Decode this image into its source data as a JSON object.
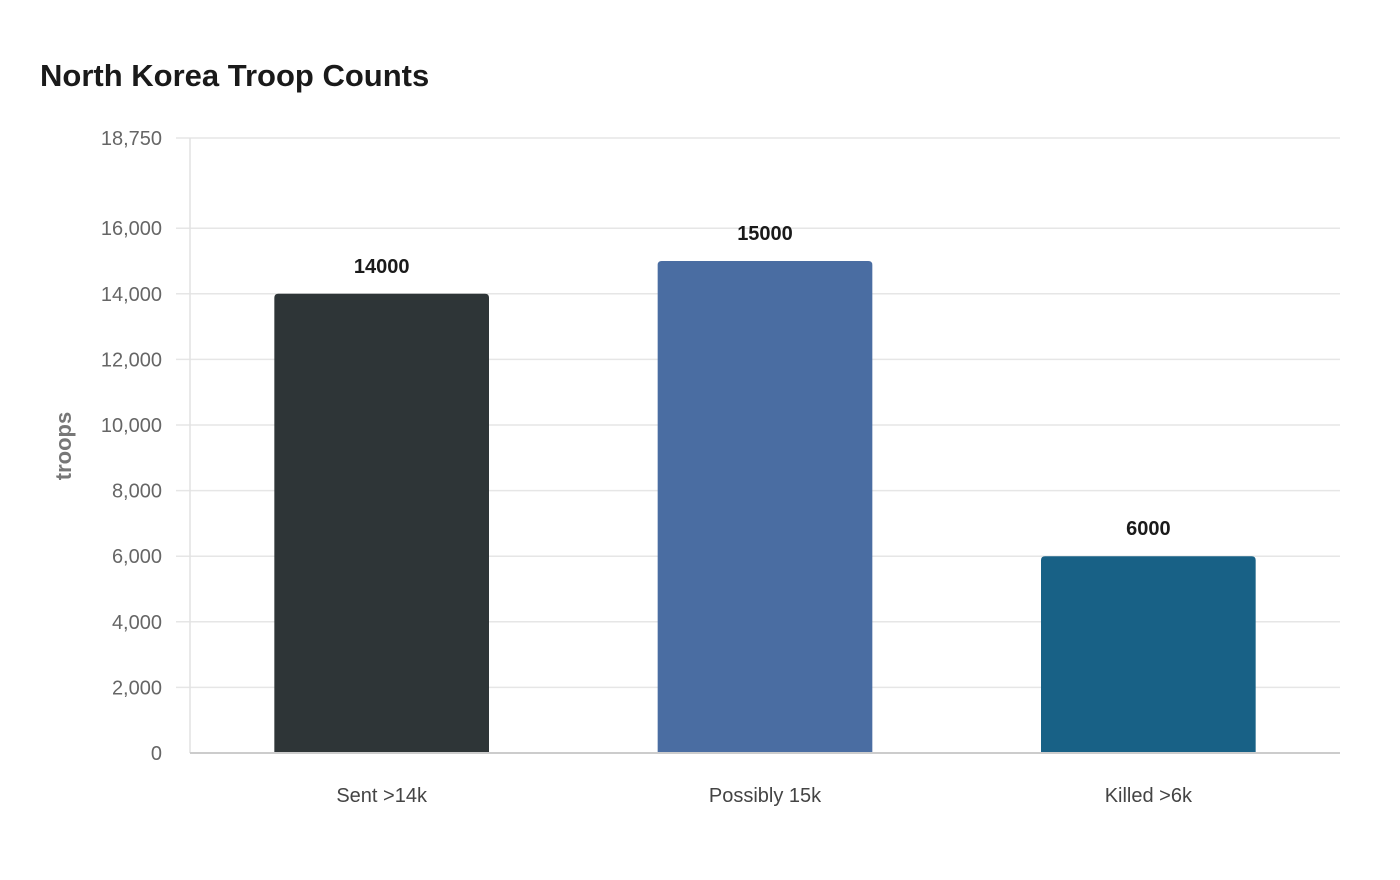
{
  "chart_data": {
    "type": "bar",
    "title": "North Korea Troop Counts",
    "xlabel": "",
    "ylabel": "troops",
    "categories": [
      "Sent >14k",
      "Possibly 15k",
      "Killed >6k"
    ],
    "values": [
      14000,
      15000,
      6000
    ],
    "value_labels": [
      "14000",
      "15000",
      "6000"
    ],
    "colors": [
      "#2e3537",
      "#4a6da2",
      "#186186"
    ],
    "ylim": [
      0,
      18750
    ],
    "yticks": [
      0,
      2000,
      4000,
      6000,
      8000,
      10000,
      12000,
      14000,
      16000,
      18750
    ],
    "ytick_labels": [
      "0",
      "2,000",
      "4,000",
      "6,000",
      "8,000",
      "10,000",
      "12,000",
      "14,000",
      "16,000",
      "18,750"
    ],
    "grid": true,
    "legend": "none"
  }
}
